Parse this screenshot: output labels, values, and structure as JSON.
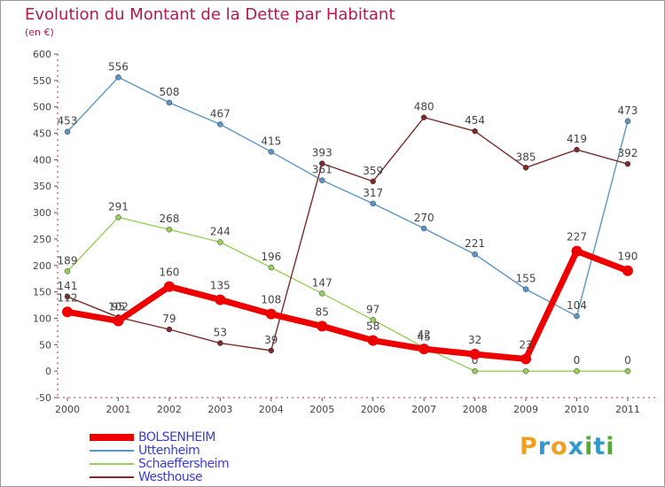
{
  "chart_data": {
    "type": "line",
    "title": "Evolution du Montant de la Dette par Habitant",
    "subtitle": "(en €)",
    "categories": [
      "2000",
      "2001",
      "2002",
      "2003",
      "2004",
      "2005",
      "2006",
      "2007",
      "2008",
      "2009",
      "2010",
      "2011"
    ],
    "y_ticks": [
      "-50",
      "0",
      "50",
      "100",
      "150",
      "200",
      "250",
      "300",
      "350",
      "400",
      "450",
      "500",
      "550",
      "600"
    ],
    "ylim": [
      -50,
      600
    ],
    "grid": false,
    "legend_position": "bottom-left",
    "series": [
      {
        "name": "Uttenheim",
        "color": "#5b96c8",
        "values": [
          453,
          556,
          508,
          467,
          415,
          361,
          317,
          270,
          221,
          155,
          104,
          473
        ],
        "labels": [
          "453",
          "556",
          "508",
          "467",
          "415",
          "361",
          "317",
          "270",
          "221",
          "155",
          "104",
          "473"
        ]
      },
      {
        "name": "Schaeffersheim",
        "color": "#96d05a",
        "values": [
          189,
          291,
          268,
          244,
          196,
          147,
          97,
          45,
          0,
          0,
          0,
          0
        ],
        "labels": [
          "189",
          "291",
          "268",
          "244",
          "196",
          "147",
          "97",
          "45",
          "0",
          "",
          "0",
          "0"
        ]
      },
      {
        "name": "Westhouse",
        "color": "#7c2a2a",
        "values": [
          141,
          102,
          79,
          53,
          39,
          393,
          359,
          480,
          454,
          385,
          419,
          392
        ],
        "labels": [
          "141",
          "102",
          "79",
          "53",
          "39",
          "393",
          "359",
          "480",
          "454",
          "385",
          "419",
          "392"
        ]
      },
      {
        "name": "BOLSENHEIM",
        "color": "#ee0000",
        "values": [
          112,
          95,
          160,
          135,
          108,
          85,
          58,
          42,
          32,
          23,
          227,
          190
        ],
        "labels": [
          "112",
          "95",
          "160",
          "135",
          "108",
          "85",
          "58",
          "42",
          "32",
          "23",
          "227",
          "190"
        ]
      }
    ],
    "legend": [
      "BOLSENHEIM",
      "Uttenheim",
      "Schaeffersheim",
      "Westhouse"
    ]
  },
  "legend_label_color": "#3b3bd8",
  "logo": {
    "text": "Proxiti",
    "colors": [
      "#f0a020",
      "#3399cc",
      "#f0a020",
      "#3399cc",
      "#55aa33",
      "#3399cc",
      "#55aa33"
    ]
  }
}
